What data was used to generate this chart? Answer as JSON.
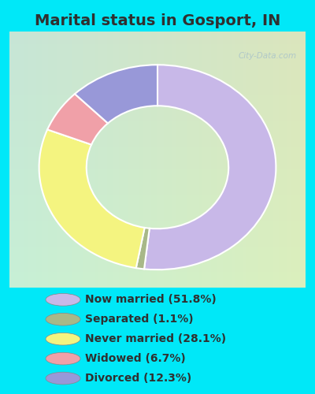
{
  "title": "Marital status in Gosport, IN",
  "slices": [
    51.8,
    1.1,
    28.1,
    6.7,
    12.3
  ],
  "colors": [
    "#c8b8e8",
    "#a8b888",
    "#f4f480",
    "#f0a0a8",
    "#9898d8"
  ],
  "labels": [
    "Now married (51.8%)",
    "Separated (1.1%)",
    "Never married (28.1%)",
    "Widowed (6.7%)",
    "Divorced (12.3%)"
  ],
  "bg_color": "#00e8f8",
  "chart_bg_tl": "#c8e8d8",
  "chart_bg_br": "#e8f4e8",
  "title_fontsize": 14,
  "watermark": "City-Data.com",
  "watermark_color": "#b0c8c8",
  "text_color": "#303030"
}
